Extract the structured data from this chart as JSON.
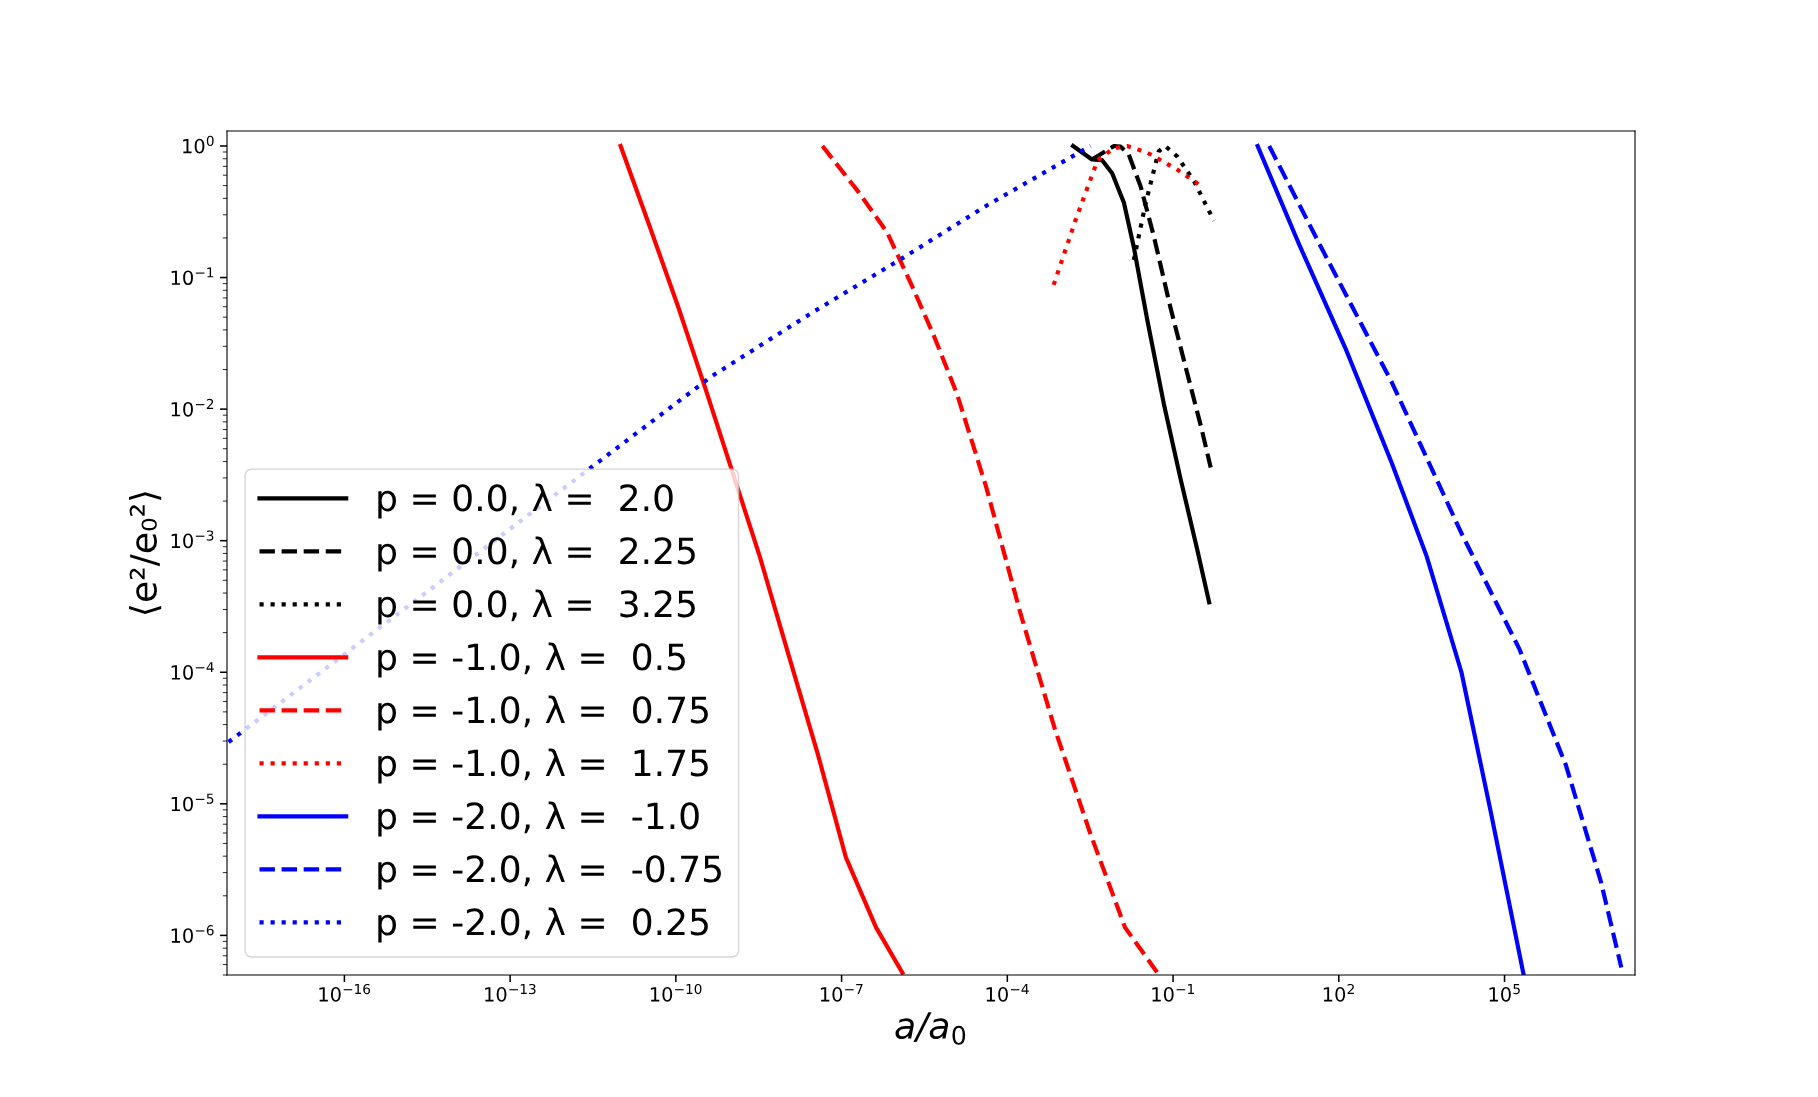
{
  "chart_data": {
    "type": "line",
    "xlabel": "a/a$_{0}$",
    "ylabel": "⟨e²/e₀²⟩",
    "log": "xy",
    "grid": false,
    "legend": "bottom left",
    "xlim": [
      7.5e-19,
      23000000.0
    ],
    "ylim": [
      5e-07,
      1.3
    ],
    "xticks": [
      {
        "value": 1e-16,
        "label": "10$^{−16}$"
      },
      {
        "value": 1e-13,
        "label": "10$^{−13}$"
      },
      {
        "value": 1e-10,
        "label": "10$^{−10}$"
      },
      {
        "value": 1e-07,
        "label": "10$^{−7}$"
      },
      {
        "value": 0.0001,
        "label": "10$^{−4}$"
      },
      {
        "value": 0.1,
        "label": "10$^{−1}$"
      },
      {
        "value": 100,
        "label": "10$^{2}$"
      },
      {
        "value": 100000,
        "label": "10$^{5}$"
      }
    ],
    "yticks": [
      {
        "value": 1e-06,
        "label": "10$^{−6}$"
      },
      {
        "value": 1e-05,
        "label": "10$^{−5}$"
      },
      {
        "value": 0.0001,
        "label": "10$^{−4}$"
      },
      {
        "value": 0.001,
        "label": "10$^{−3}$"
      },
      {
        "value": 0.01,
        "label": "10$^{−2}$"
      },
      {
        "value": 0.1,
        "label": "10$^{−1}$"
      },
      {
        "value": 1,
        "label": "10$^{0}$"
      }
    ],
    "series": [
      {
        "name": "p = 0.0, λ =  2.0",
        "color": "#000000",
        "line_style": "solid",
        "x": [
          0.00155,
          0.0034,
          0.0052,
          0.0079,
          0.0129,
          0.0195,
          0.034,
          0.068,
          0.138,
          0.275,
          0.45
        ],
        "values": [
          1.0,
          0.79,
          0.78,
          0.62,
          0.37,
          0.17,
          0.048,
          0.011,
          0.0029,
          0.00085,
          0.00034
        ]
      },
      {
        "name": "p = 0.0, λ =  2.25",
        "color": "#000000",
        "line_style": "dashed",
        "x": [
          0.0034,
          0.0085,
          0.0112,
          0.0158,
          0.026,
          0.045,
          0.089,
          0.18,
          0.32,
          0.48
        ],
        "values": [
          0.79,
          1.0,
          0.99,
          0.86,
          0.49,
          0.205,
          0.06,
          0.0188,
          0.0074,
          0.0036
        ]
      },
      {
        "name": "p = 0.0, λ =  3.25",
        "color": "#000000",
        "line_style": "dotted",
        "x": [
          0.0195,
          0.032,
          0.055,
          0.072,
          0.12,
          0.24,
          0.55
        ],
        "values": [
          0.136,
          0.37,
          0.91,
          1.0,
          0.83,
          0.54,
          0.27
        ]
      },
      {
        "name": "p = -1.0, λ =  0.5",
        "color": "#ff0000",
        "line_style": "solid",
        "x": [
          1e-11,
          3.3e-11,
          1.1e-10,
          3.7e-10,
          3.3e-09,
          1.1e-08,
          3.7e-08,
          1.2e-07,
          4.2e-07,
          1.26e-06
        ],
        "values": [
          1.0,
          0.25,
          0.06,
          0.013,
          0.00076,
          0.000135,
          2.4e-05,
          3.9e-06,
          1.15e-06,
          5.2e-07
        ]
      },
      {
        "name": "p = -1.0, λ =  0.75",
        "color": "#ff0000",
        "line_style": "dashed",
        "x": [
          4.5e-08,
          2e-07,
          6.7e-07,
          1.8e-06,
          4.7e-06,
          1.23e-05,
          4.1e-05,
          0.000175,
          0.00074,
          0.0032,
          0.0135,
          0.052
        ],
        "values": [
          1.0,
          0.45,
          0.22,
          0.09,
          0.036,
          0.013,
          0.0026,
          0.000275,
          3.6e-05,
          5.9e-06,
          1.15e-06,
          5.2e-07
        ]
      },
      {
        "name": "p = -1.0, λ =  1.75",
        "color": "#ff0000",
        "line_style": "dotted",
        "x": [
          0.00069,
          0.0017,
          0.0043,
          0.0084,
          0.0148,
          0.034,
          0.12,
          0.36
        ],
        "values": [
          0.088,
          0.27,
          0.78,
          0.96,
          1.0,
          0.89,
          0.66,
          0.48
        ]
      },
      {
        "name": "p = -2.0, λ =  -1.0",
        "color": "#0000ff",
        "line_style": "solid",
        "x": [
          3.4,
          19,
          132,
          910,
          3900,
          16600,
          56000,
          220000
        ],
        "values": [
          1.0,
          0.18,
          0.029,
          0.0039,
          0.00076,
          0.0001,
          8.8e-06,
          5.1e-07
        ]
      },
      {
        "name": "p = -2.0, λ =  -0.75",
        "color": "#0000ff",
        "line_style": "dashed",
        "x": [
          5.5,
          50,
          910,
          16600,
          186000,
          1290000,
          5500000,
          13000000
        ],
        "values": [
          1.0,
          0.164,
          0.016,
          0.00114,
          0.00015,
          1.97e-05,
          2.6e-06,
          5.7e-07
        ]
      },
      {
        "name": "p = -2.0, λ =  0.25",
        "color": "#0000ff",
        "line_style": "dotted",
        "x": [
          8e-19,
          4.4e-10,
          2.9e-08,
          1.15e-06,
          4.1e-05,
          0.0032
        ],
        "values": [
          2.95e-05,
          0.0177,
          0.054,
          0.137,
          0.35,
          1.0
        ]
      }
    ]
  }
}
